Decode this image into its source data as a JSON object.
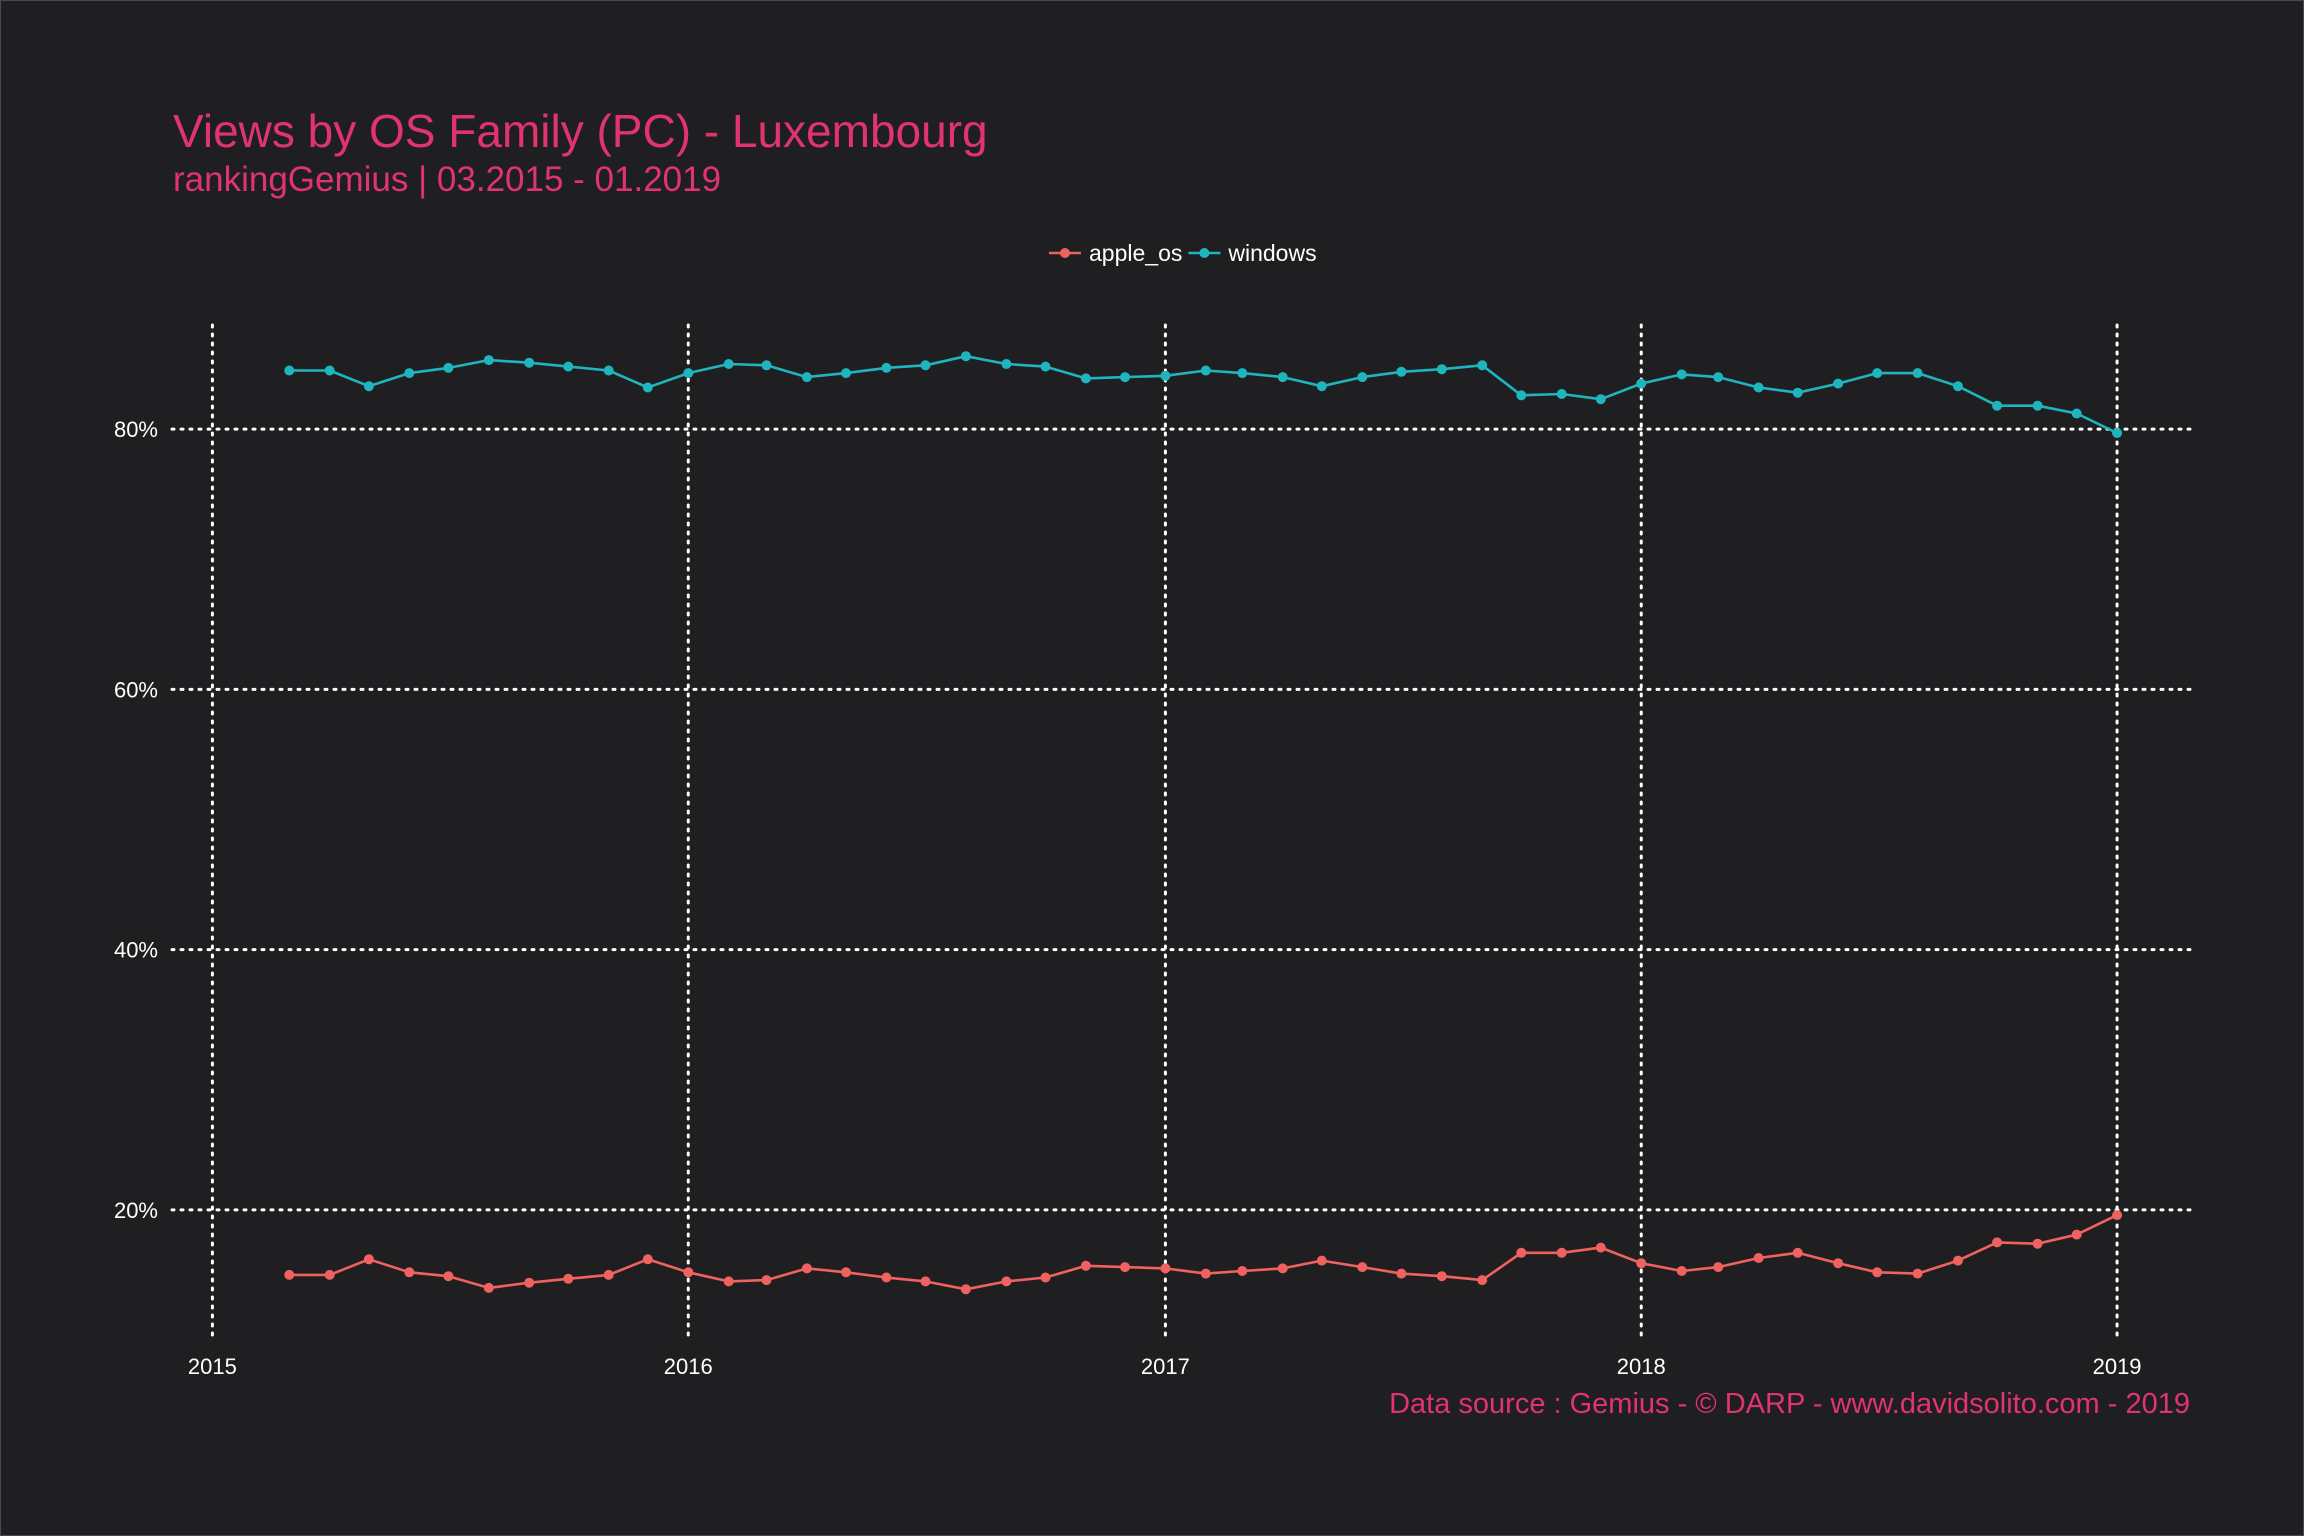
{
  "title": "Views by OS Family (PC) - Luxembourg",
  "subtitle": "rankingGemius | 03.2015 - 01.2019",
  "caption": "Data source : Gemius - © DARP - www.davidsolito.com - 2019",
  "colors": {
    "background": "#1f1f21",
    "accent": "#e0336f",
    "apple_os": "#f0625f",
    "windows": "#1fb5bf",
    "grid": "#ffffff"
  },
  "chart_data": {
    "type": "line",
    "title": "Views by OS Family (PC) - Luxembourg",
    "subtitle": "rankingGemius | 03.2015 - 01.2019",
    "xlabel": "",
    "ylabel": "",
    "x": [
      "2015-03",
      "2015-04",
      "2015-05",
      "2015-06",
      "2015-07",
      "2015-08",
      "2015-09",
      "2015-10",
      "2015-11",
      "2015-12",
      "2016-01",
      "2016-02",
      "2016-03",
      "2016-04",
      "2016-05",
      "2016-06",
      "2016-07",
      "2016-08",
      "2016-09",
      "2016-10",
      "2016-11",
      "2016-12",
      "2017-01",
      "2017-02",
      "2017-03",
      "2017-04",
      "2017-05",
      "2017-06",
      "2017-07",
      "2017-08",
      "2017-09",
      "2017-10",
      "2017-11",
      "2017-12",
      "2018-01",
      "2018-02",
      "2018-03",
      "2018-04",
      "2018-05",
      "2018-06",
      "2018-07",
      "2018-08",
      "2018-09",
      "2018-10",
      "2018-11",
      "2018-12",
      "2019-01"
    ],
    "xlim": [
      "2014-12-01",
      "2019-03-01"
    ],
    "xticks": [
      "2015",
      "2016",
      "2017",
      "2018",
      "2019"
    ],
    "ylim": [
      10,
      88
    ],
    "yticks": [
      {
        "value": 20,
        "label": "20%"
      },
      {
        "value": 40,
        "label": "40%"
      },
      {
        "value": 60,
        "label": "60%"
      },
      {
        "value": 80,
        "label": "80%"
      }
    ],
    "grid": true,
    "legend": "top-center",
    "series": [
      {
        "name": "apple_os",
        "color": "#f0625f",
        "values": [
          15.0,
          15.0,
          16.2,
          15.2,
          14.9,
          14.0,
          14.4,
          14.7,
          15.0,
          16.2,
          15.2,
          14.5,
          14.6,
          15.5,
          15.2,
          14.8,
          14.5,
          13.9,
          14.5,
          14.8,
          15.7,
          15.6,
          15.5,
          15.1,
          15.3,
          15.5,
          16.1,
          15.6,
          15.1,
          14.9,
          14.6,
          16.7,
          16.7,
          17.1,
          15.9,
          15.3,
          15.6,
          16.3,
          16.7,
          15.9,
          15.2,
          15.1,
          16.1,
          17.5,
          17.4,
          18.1,
          19.6
        ]
      },
      {
        "name": "windows",
        "color": "#1fb5bf",
        "values": [
          84.5,
          84.5,
          83.3,
          84.3,
          84.7,
          85.3,
          85.1,
          84.8,
          84.5,
          83.2,
          84.3,
          85.0,
          84.9,
          84.0,
          84.3,
          84.7,
          84.9,
          85.6,
          85.0,
          84.8,
          83.9,
          84.0,
          84.1,
          84.5,
          84.3,
          84.0,
          83.3,
          84.0,
          84.4,
          84.6,
          84.9,
          82.6,
          82.7,
          82.3,
          83.5,
          84.2,
          84.0,
          83.2,
          82.8,
          83.5,
          84.3,
          84.3,
          83.3,
          81.8,
          81.8,
          81.2,
          79.7
        ]
      }
    ]
  }
}
